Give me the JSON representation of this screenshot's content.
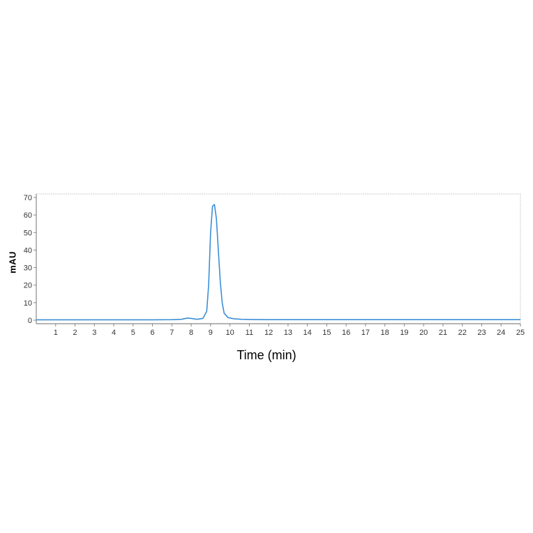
{
  "chromatogram": {
    "type": "line",
    "ylabel": "mAU",
    "xlabel": "Time (min)",
    "xlim": [
      0,
      25
    ],
    "ylim": [
      -2,
      72
    ],
    "xtick_step": 1,
    "xtick_start": 1,
    "xtick_end": 25,
    "yticks": [
      0,
      10,
      20,
      30,
      40,
      50,
      60,
      70
    ],
    "line_color": "#3b8fd6",
    "line_width": 1.6,
    "axis_color": "#888888",
    "border_color": "#cccccc",
    "tick_label_color": "#333333",
    "label_color": "#000000",
    "background_color": "#ffffff",
    "tick_fontsize": 11,
    "ylabel_fontsize": 13,
    "xlabel_fontsize": 18,
    "data_points": [
      {
        "x": 0.0,
        "y": 0.2
      },
      {
        "x": 1.0,
        "y": 0.2
      },
      {
        "x": 2.0,
        "y": 0.2
      },
      {
        "x": 3.0,
        "y": 0.2
      },
      {
        "x": 4.0,
        "y": 0.2
      },
      {
        "x": 5.0,
        "y": 0.2
      },
      {
        "x": 6.0,
        "y": 0.2
      },
      {
        "x": 7.0,
        "y": 0.3
      },
      {
        "x": 7.5,
        "y": 0.5
      },
      {
        "x": 7.8,
        "y": 1.2
      },
      {
        "x": 8.0,
        "y": 1.0
      },
      {
        "x": 8.3,
        "y": 0.5
      },
      {
        "x": 8.6,
        "y": 1.0
      },
      {
        "x": 8.8,
        "y": 5.0
      },
      {
        "x": 8.9,
        "y": 20.0
      },
      {
        "x": 9.0,
        "y": 50.0
      },
      {
        "x": 9.1,
        "y": 65.0
      },
      {
        "x": 9.2,
        "y": 66.0
      },
      {
        "x": 9.3,
        "y": 58.0
      },
      {
        "x": 9.4,
        "y": 40.0
      },
      {
        "x": 9.5,
        "y": 22.0
      },
      {
        "x": 9.6,
        "y": 10.0
      },
      {
        "x": 9.7,
        "y": 4.0
      },
      {
        "x": 9.9,
        "y": 1.5
      },
      {
        "x": 10.2,
        "y": 0.8
      },
      {
        "x": 10.6,
        "y": 0.5
      },
      {
        "x": 11.0,
        "y": 0.4
      },
      {
        "x": 12.0,
        "y": 0.3
      },
      {
        "x": 13.0,
        "y": 0.3
      },
      {
        "x": 15.0,
        "y": 0.3
      },
      {
        "x": 18.0,
        "y": 0.3
      },
      {
        "x": 21.0,
        "y": 0.3
      },
      {
        "x": 25.0,
        "y": 0.3
      }
    ]
  }
}
